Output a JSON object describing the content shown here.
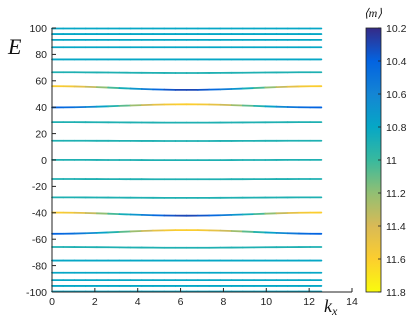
{
  "chart_data": {
    "type": "line",
    "xlabel": "k",
    "xlabel_sub": "x",
    "ylabel": "E",
    "xlim": [
      0,
      14
    ],
    "ylim": [
      -100,
      100
    ],
    "xticks": [
      "0",
      "2",
      "4",
      "6",
      "8",
      "10",
      "12",
      "14"
    ],
    "yticks": [
      "100",
      "80",
      "60",
      "40",
      "20",
      "0",
      "-20",
      "-40",
      "-60",
      "-80",
      "-100"
    ],
    "x_data_max": 12.57,
    "bands": [
      {
        "level": 99.6,
        "amp": 0,
        "m_start": 10.8,
        "m_end": 10.8
      },
      {
        "level": 95.4,
        "amp": 0,
        "m_start": 10.8,
        "m_end": 10.8
      },
      {
        "level": 91.0,
        "amp": 0,
        "m_start": 10.8,
        "m_end": 10.8
      },
      {
        "level": 85.4,
        "amp": 0,
        "m_start": 10.8,
        "m_end": 10.8
      },
      {
        "level": 76.2,
        "amp": 0,
        "m_start": 10.8,
        "m_end": 10.8
      },
      {
        "level": 66.2,
        "amp": 0.3,
        "m_start": 10.9,
        "m_end": 10.9
      },
      {
        "level": 54.5,
        "amp": 1.4,
        "m_start": 11.6,
        "m_end": 11.6,
        "m_mid": 10.3
      },
      {
        "level": 41.0,
        "amp": -1.2,
        "m_start": 10.4,
        "m_end": 10.4,
        "m_mid": 11.6
      },
      {
        "level": 28.5,
        "amp": 0.2,
        "m_start": 10.9,
        "m_end": 10.9
      },
      {
        "level": 14.5,
        "amp": 0.1,
        "m_start": 10.9,
        "m_end": 10.9
      },
      {
        "level": 0.0,
        "amp": 0.1,
        "m_start": 10.9,
        "m_end": 10.9
      },
      {
        "level": -14.5,
        "amp": 0.1,
        "m_start": 10.9,
        "m_end": 10.9
      },
      {
        "level": -28.5,
        "amp": 0.2,
        "m_start": 10.9,
        "m_end": 10.9
      },
      {
        "level": -41.0,
        "amp": 1.2,
        "m_start": 11.6,
        "m_end": 11.6,
        "m_mid": 10.3
      },
      {
        "level": -54.5,
        "amp": -1.4,
        "m_start": 10.4,
        "m_end": 10.4,
        "m_mid": 11.6
      },
      {
        "level": -66.2,
        "amp": 0.3,
        "m_start": 10.9,
        "m_end": 10.9
      },
      {
        "level": -76.2,
        "amp": 0,
        "m_start": 10.8,
        "m_end": 10.8
      },
      {
        "level": -85.4,
        "amp": 0,
        "m_start": 10.8,
        "m_end": 10.8
      },
      {
        "level": -91.0,
        "amp": 0,
        "m_start": 10.8,
        "m_end": 10.8
      },
      {
        "level": -95.4,
        "amp": 0,
        "m_start": 10.8,
        "m_end": 10.8
      },
      {
        "level": -99.6,
        "amp": 0,
        "m_start": 10.8,
        "m_end": 10.8
      }
    ],
    "colorbar": {
      "label": "⟨m⟩",
      "min": 10.2,
      "max": 11.8,
      "reversed": true,
      "ticks": [
        "10.2",
        "10.4",
        "10.6",
        "10.8",
        "11",
        "11.2",
        "11.4",
        "11.6",
        "11.8"
      ],
      "colormap": [
        "#352a87",
        "#0363e1",
        "#1485d4",
        "#06a7c6",
        "#38b99e",
        "#92bf73",
        "#d9ba56",
        "#fcce2e",
        "#f9fb0e"
      ]
    },
    "grid": false
  }
}
